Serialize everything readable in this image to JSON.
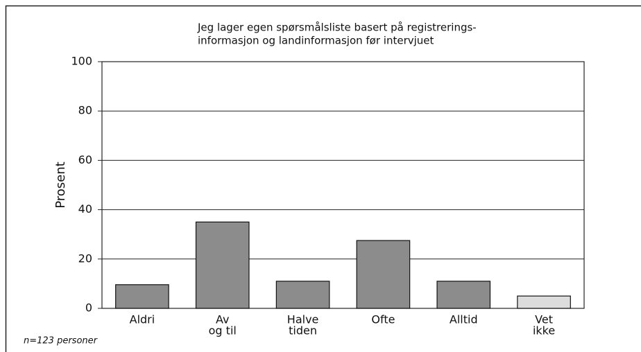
{
  "chart_data": {
    "type": "bar",
    "title": [
      "Jeg lager egen spørsmålsliste basert på  registrerings-",
      "informasjon og landinformasjon før intervjuet"
    ],
    "y_label": "Prosent",
    "note": "n=123 personer",
    "categories": [
      [
        "Aldri"
      ],
      [
        "Av",
        "og til"
      ],
      [
        "Halve",
        "tiden"
      ],
      [
        "Ofte"
      ],
      [
        "Alltid"
      ],
      [
        "Vet",
        "ikke"
      ]
    ],
    "values": [
      9.6,
      35,
      11,
      27.5,
      11,
      5
    ],
    "colors": [
      "#8c8c8c",
      "#8c8c8c",
      "#8c8c8c",
      "#8c8c8c",
      "#8c8c8c",
      "#dcdcdc"
    ],
    "ylim": [
      0,
      100
    ],
    "yticks": [
      0,
      20,
      40,
      60,
      80,
      100
    ],
    "grid": true
  }
}
